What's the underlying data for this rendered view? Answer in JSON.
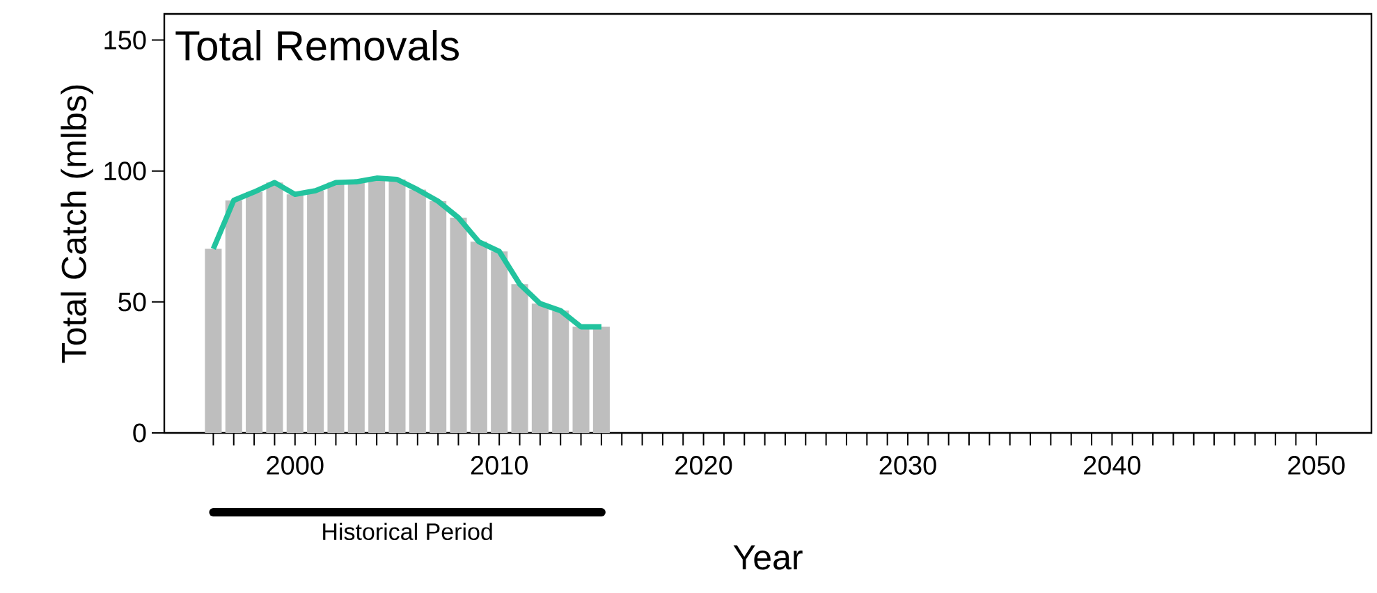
{
  "chart_data": {
    "type": "bar",
    "title": "Total Removals",
    "xlabel": "Year",
    "ylabel": "Total Catch (mlbs)",
    "x": [
      1996,
      1997,
      1998,
      1999,
      2000,
      2001,
      2002,
      2003,
      2004,
      2005,
      2006,
      2007,
      2008,
      2009,
      2010,
      2011,
      2012,
      2013,
      2014,
      2015
    ],
    "series": [
      {
        "color": "#bebebe",
        "values": [
          70.3,
          88.8,
          92,
          95.6,
          91.1,
          92.5,
          95.6,
          95.9,
          97.3,
          96.8,
          92.9,
          88.5,
          82.2,
          73,
          69.3,
          56.8,
          49.4,
          46.7,
          40.5,
          40.5
        ]
      },
      {
        "type": "line",
        "color": "#22c39e",
        "values": [
          70.3,
          88.8,
          92,
          95.6,
          91.1,
          92.5,
          95.6,
          95.9,
          97.3,
          96.8,
          92.9,
          88.5,
          82.2,
          73,
          69.3,
          56.8,
          49.4,
          46.7,
          40.5,
          40.5
        ]
      }
    ],
    "xlim": [
      1993.6,
      2052.7
    ],
    "ylim": [
      0,
      160
    ],
    "xticks": [
      {
        "value": 1996,
        "label": null
      },
      {
        "value": 1997,
        "label": null
      },
      {
        "value": 1998,
        "label": null
      },
      {
        "value": 1999,
        "label": null
      },
      2000,
      {
        "value": 2001,
        "label": null
      },
      {
        "value": 2002,
        "label": null
      },
      {
        "value": 2003,
        "label": null
      },
      {
        "value": 2004,
        "label": null
      },
      {
        "value": 2005,
        "label": null
      },
      {
        "value": 2006,
        "label": null
      },
      {
        "value": 2007,
        "label": null
      },
      {
        "value": 2008,
        "label": null
      },
      {
        "value": 2009,
        "label": null
      },
      2010,
      {
        "value": 2011,
        "label": null
      },
      {
        "value": 2012,
        "label": null
      },
      {
        "value": 2013,
        "label": null
      },
      {
        "value": 2014,
        "label": null
      },
      {
        "value": 2015,
        "label": null
      },
      {
        "value": 2016,
        "label": null
      },
      {
        "value": 2017,
        "label": null
      },
      {
        "value": 2018,
        "label": null
      },
      {
        "value": 2019,
        "label": null
      },
      2020,
      {
        "value": 2021,
        "label": null
      },
      {
        "value": 2022,
        "label": null
      },
      {
        "value": 2023,
        "label": null
      },
      {
        "value": 2024,
        "label": null
      },
      {
        "value": 2025,
        "label": null
      },
      {
        "value": 2026,
        "label": null
      },
      {
        "value": 2027,
        "label": null
      },
      {
        "value": 2028,
        "label": null
      },
      {
        "value": 2029,
        "label": null
      },
      2030,
      {
        "value": 2031,
        "label": null
      },
      {
        "value": 2032,
        "label": null
      },
      {
        "value": 2033,
        "label": null
      },
      {
        "value": 2034,
        "label": null
      },
      {
        "value": 2035,
        "label": null
      },
      {
        "value": 2036,
        "label": null
      },
      {
        "value": 2037,
        "label": null
      },
      {
        "value": 2038,
        "label": null
      },
      {
        "value": 2039,
        "label": null
      },
      2040,
      {
        "value": 2041,
        "label": null
      },
      {
        "value": 2042,
        "label": null
      },
      {
        "value": 2043,
        "label": null
      },
      {
        "value": 2044,
        "label": null
      },
      {
        "value": 2045,
        "label": null
      },
      {
        "value": 2046,
        "label": null
      },
      {
        "value": 2047,
        "label": null
      },
      {
        "value": 2048,
        "label": null
      },
      {
        "value": 2049,
        "label": null
      },
      2050
    ],
    "yticks": [
      0,
      50,
      100,
      150
    ],
    "annotations": [
      "Historical Period"
    ],
    "grid": false
  }
}
